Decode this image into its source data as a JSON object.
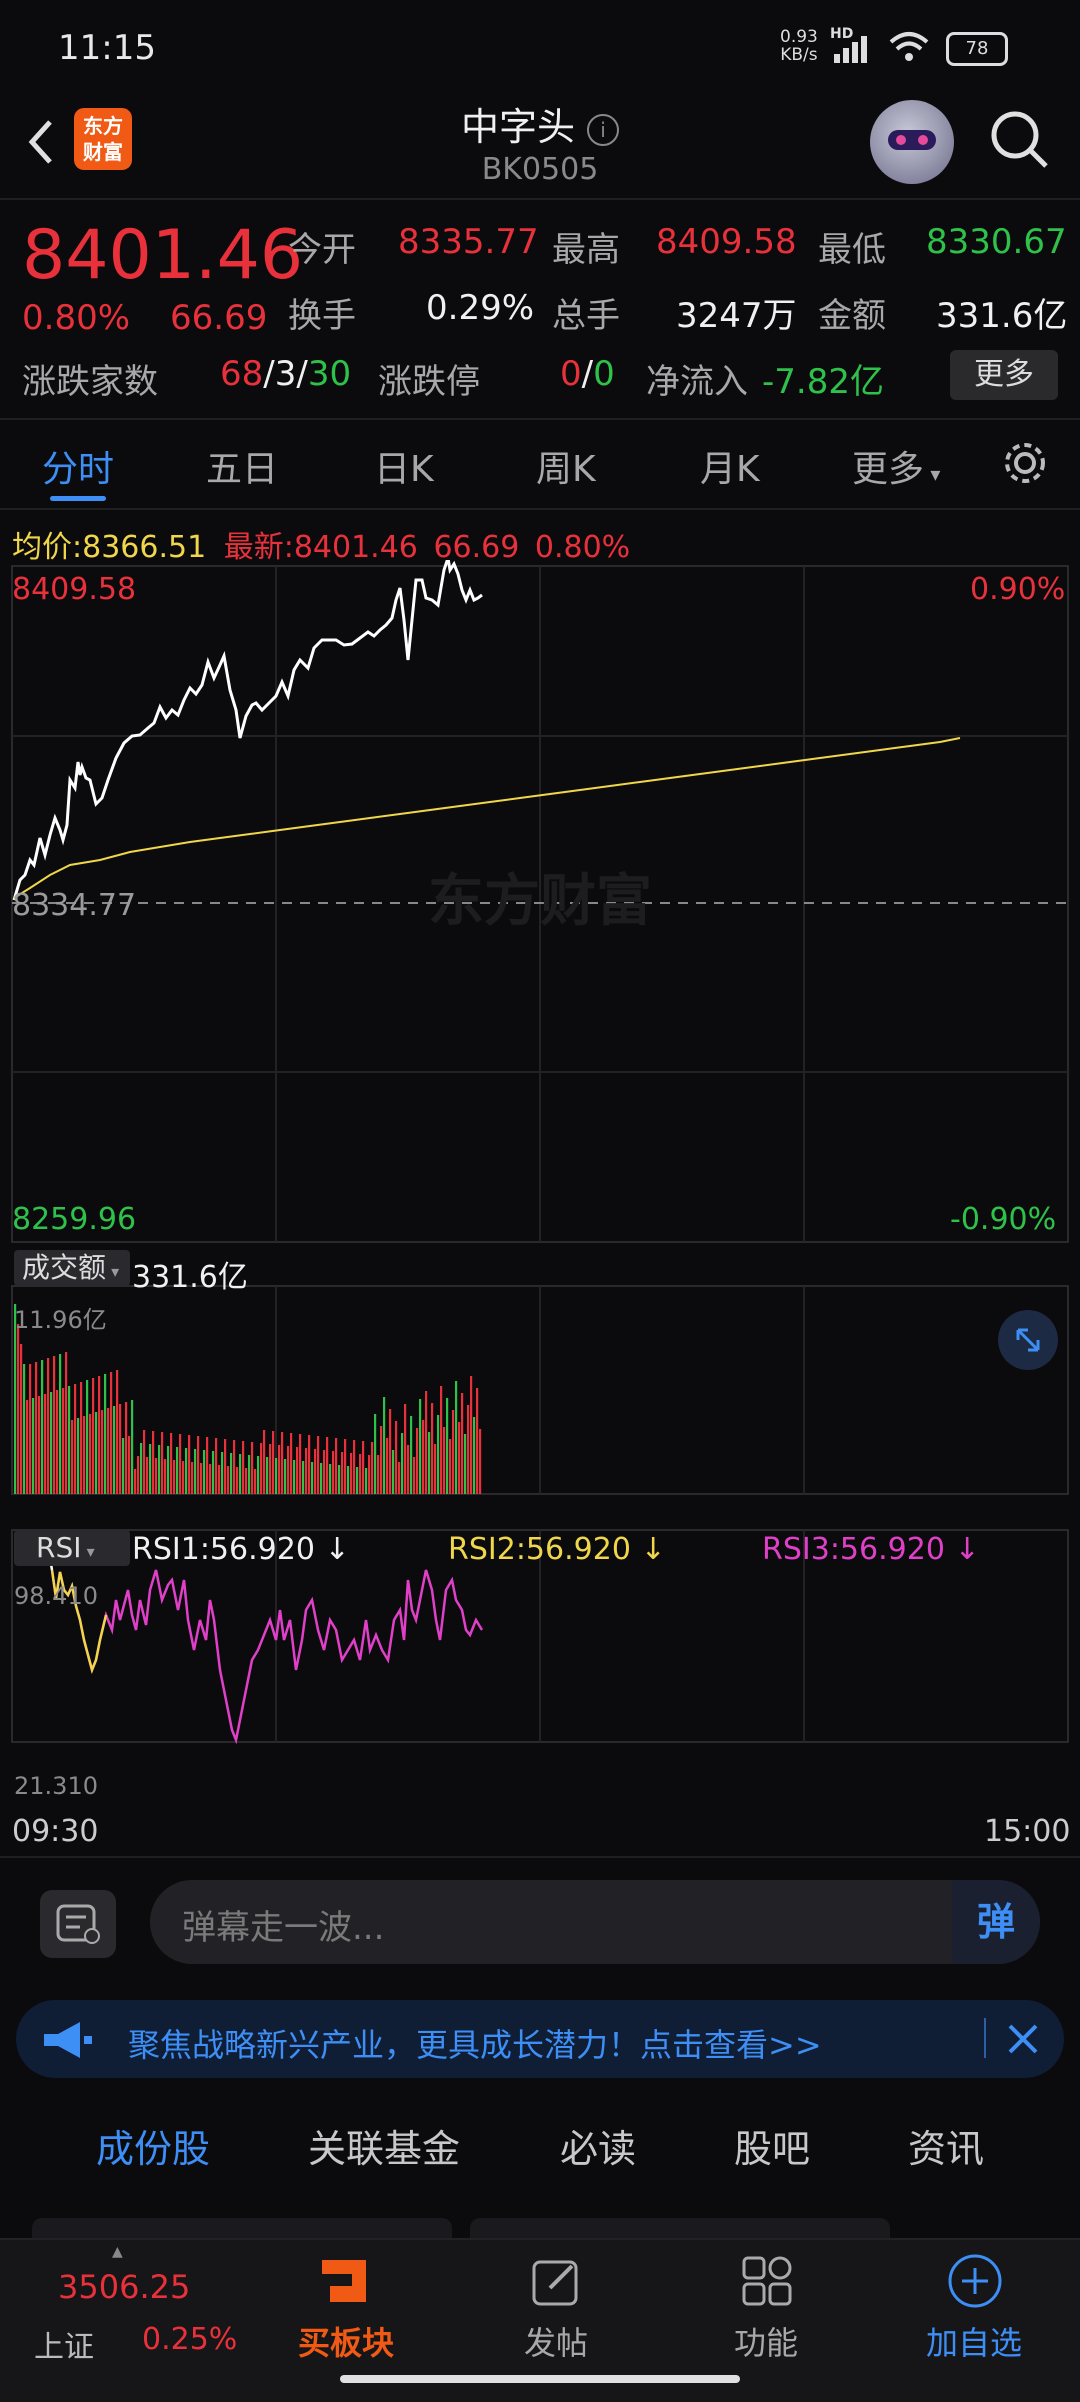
{
  "status_bar": {
    "time": "11:15",
    "net_speed": "0.93",
    "net_unit": "KB/s",
    "hd": "HD",
    "battery": "78"
  },
  "header": {
    "logo_text": "东方财富",
    "title": "中字头",
    "code": "BK0505"
  },
  "quote": {
    "price": "8401.46",
    "change_pct": "0.80%",
    "change": "66.69",
    "open_label": "今开",
    "open": "8335.77",
    "high_label": "最高",
    "high": "8409.58",
    "low_label": "最低",
    "low": "8330.67",
    "turnover_label": "换手",
    "turnover": "0.29%",
    "volume_label": "总手",
    "volume": "3247万",
    "amount_label": "金额",
    "amount": "331.6亿",
    "updown_label": "涨跌家数",
    "up": "68",
    "flat": "3",
    "down": "30",
    "limit_label": "涨跌停",
    "limit_up": "0",
    "limit_down": "0",
    "netflow_label": "净流入",
    "netflow": "-7.82亿",
    "more_label": "更多"
  },
  "tabs": [
    "分时",
    "五日",
    "日K",
    "周K",
    "月K",
    "更多"
  ],
  "chart": {
    "avg_label": "均价:",
    "avg": "8366.51",
    "latest_label": "最新:",
    "latest": "8401.46",
    "latest_change": "66.69",
    "latest_pct": "0.80%",
    "y_top": "8409.58",
    "y_mid": "8334.77",
    "y_bottom": "8259.96",
    "pct_top": "0.90%",
    "pct_bottom": "-0.90%",
    "watermark": "东方财富",
    "volume_label": "成交额",
    "volume_value": "331.6亿",
    "volume_max": "11.96亿",
    "rsi_label": "RSI",
    "rsi1": "RSI1:56.920",
    "rsi2": "RSI2:56.920",
    "rsi3": "RSI3:56.920",
    "rsi_max": "98.410",
    "rsi_min": "21.310",
    "time_start": "09:30",
    "time_end": "15:00"
  },
  "danmu": {
    "placeholder": "弹幕走一波...",
    "button": "弹"
  },
  "banner": {
    "text": "聚焦战略新兴产业，更具成长潜力！点击查看>>"
  },
  "sub_tabs": [
    "成份股",
    "关联基金",
    "必读",
    "股吧",
    "资讯"
  ],
  "bottom_nav": {
    "index_value": "3506.25",
    "index_name": "上证",
    "index_pct": "0.25%",
    "items": [
      "买板块",
      "发帖",
      "功能",
      "加自选"
    ]
  },
  "colors": {
    "up": "#e8313a",
    "down": "#2fc24a",
    "accent": "#3d8ef5",
    "avg_line": "#f0d64a"
  }
}
